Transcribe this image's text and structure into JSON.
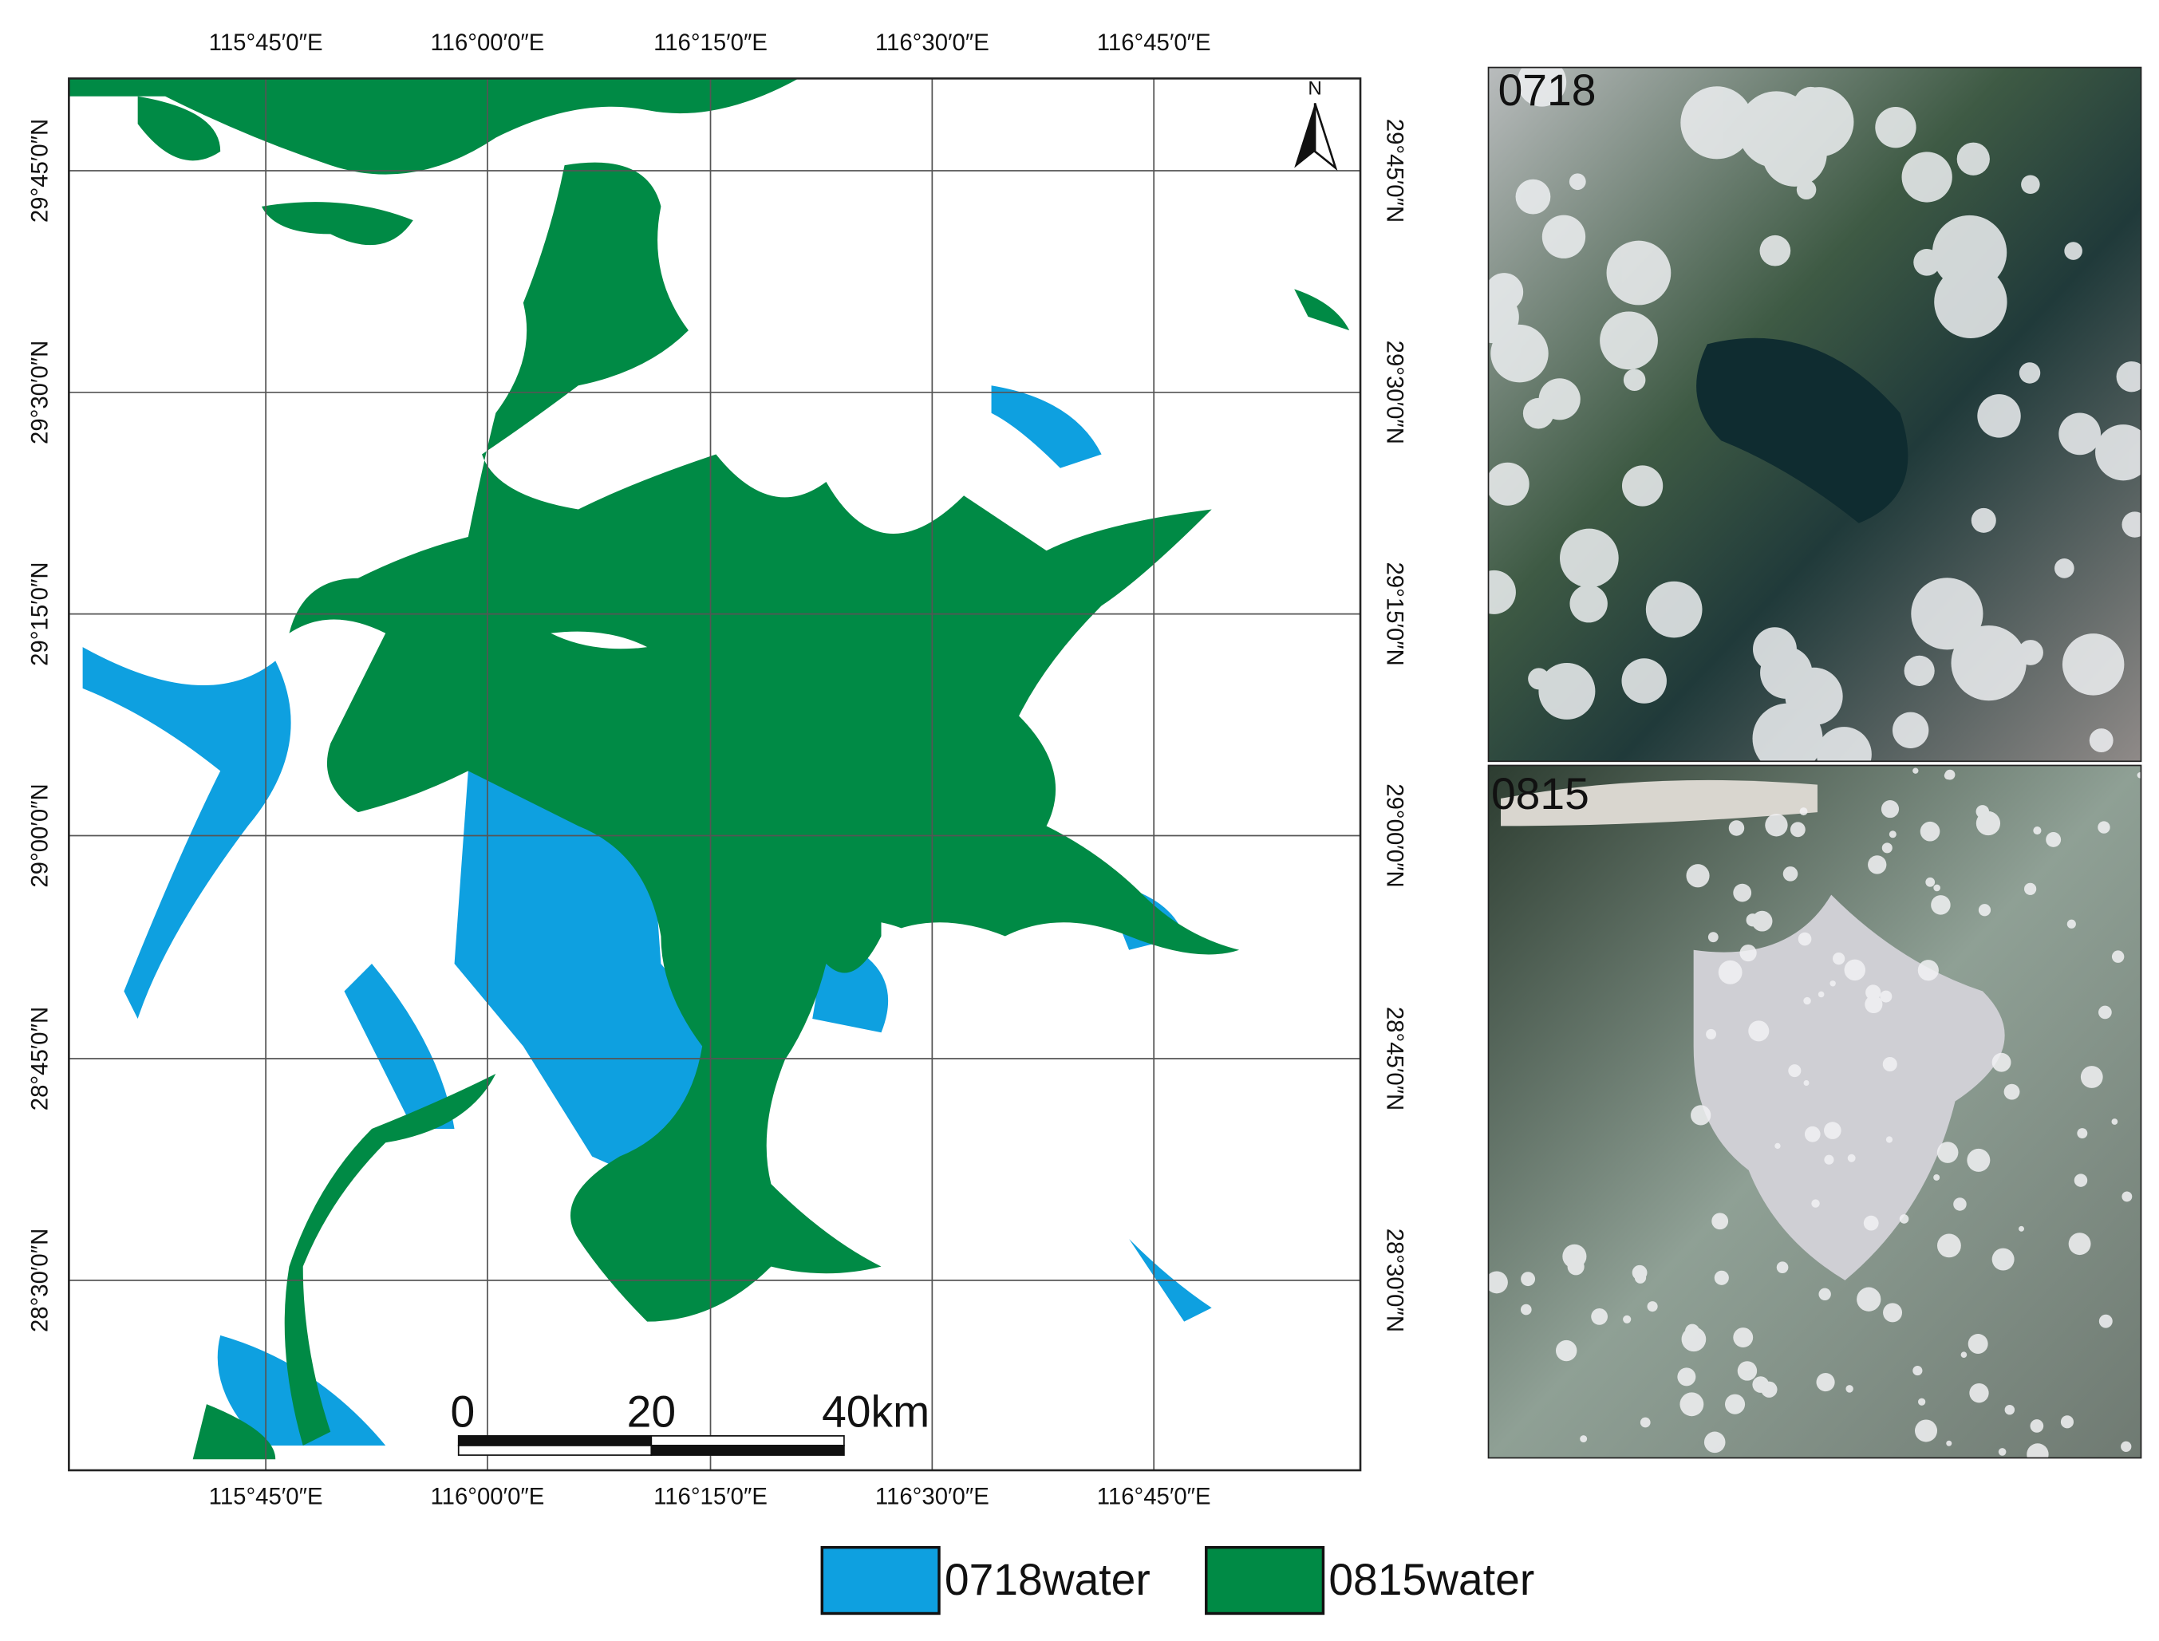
{
  "map": {
    "top_labels": [
      "115°45′0″E",
      "116°00′0″E",
      "116°15′0″E",
      "116°30′0″E",
      "116°45′0″E"
    ],
    "bottom_labels": [
      "115°45′0″E",
      "116°00′0″E",
      "116°15′0″E",
      "116°30′0″E",
      "116°45′0″E"
    ],
    "left_labels": [
      "29°45′0″N",
      "29°30′0″N",
      "29°15′0″N",
      "29°00′0″N",
      "28°45′0″N",
      "28°30′0″N"
    ],
    "right_labels": [
      "29°45′0″N",
      "29°30′0″N",
      "29°15′0″N",
      "29°00′0″N",
      "28°45′0″N",
      "28°30′0″N"
    ],
    "north": "N",
    "scale_labels": [
      "0",
      "20",
      "40km"
    ],
    "panels": [
      "0718",
      "0815"
    ],
    "legend": [
      {
        "name": "0718water",
        "color": "#0ea0e0"
      },
      {
        "name": "0815water",
        "color": "#008a45"
      }
    ]
  }
}
